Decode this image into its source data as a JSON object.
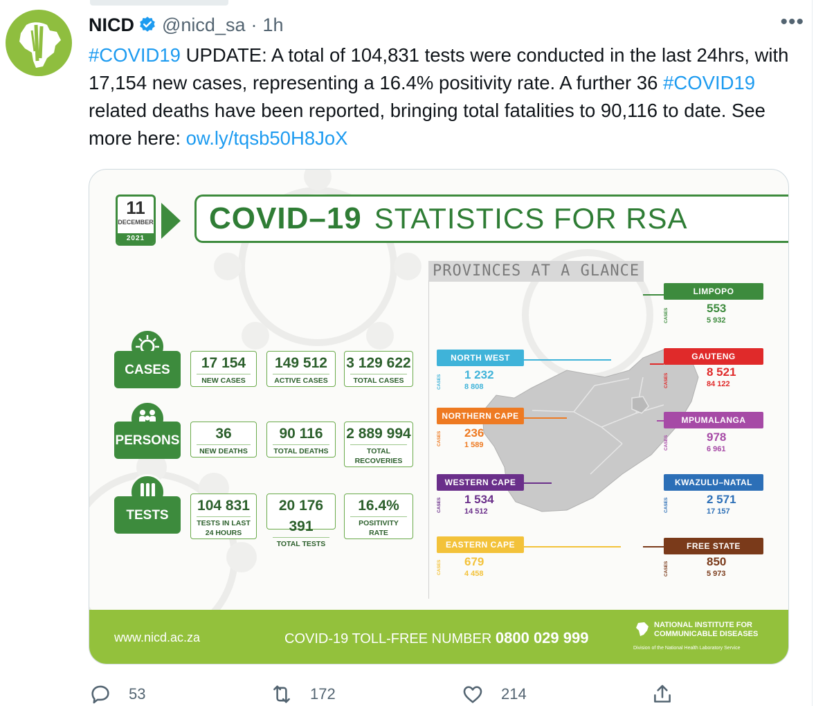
{
  "tweet": {
    "display_name": "NICD",
    "handle": "@nicd_sa",
    "time": "1h",
    "text_parts": {
      "tag1": "#COVID19",
      "p1": " UPDATE: A total of 104,831 tests were conducted in the last 24hrs, with 17,154 new cases, representing a 16.4% positivity rate. A further 36 ",
      "tag2": "#COVID19",
      "p2": " related deaths have been reported, bringing total fatalities to 90,116 to date. See more here: ",
      "url": "ow.ly/tqsb50H8JoX"
    },
    "counts": {
      "replies": "53",
      "retweets": "172",
      "likes": "214"
    }
  },
  "infographic": {
    "date": {
      "day": "11",
      "month": "DECEMBER",
      "year": "2021"
    },
    "title_bold": "COVID–19",
    "title_light": "STATISTICS FOR RSA",
    "cases": {
      "label": "CASES",
      "new": {
        "value": "17 154",
        "label": "NEW CASES"
      },
      "active": {
        "value": "149 512",
        "label": "ACTIVE CASES"
      },
      "total": {
        "value": "3 129 622",
        "label": "TOTAL CASES"
      }
    },
    "persons": {
      "label": "PERSONS",
      "new_deaths": {
        "value": "36",
        "label": "NEW DEATHS"
      },
      "total_deaths": {
        "value": "90 116",
        "label": "TOTAL DEATHS"
      },
      "recoveries": {
        "value": "2 889 994",
        "label": "TOTAL RECOVERIES"
      }
    },
    "tests": {
      "label": "TESTS",
      "last24": {
        "value": "104 831",
        "label": "TESTS IN LAST 24 HOURS"
      },
      "total": {
        "value": "20 176 391",
        "label": "TOTAL TESTS"
      },
      "positivity": {
        "value": "16.4%",
        "label": "POSITIVITY RATE"
      }
    },
    "glance": "PROVINCES AT A GLANCE",
    "cases_tag": "CASES",
    "provinces": {
      "limpopo": {
        "name": "LIMPOPO",
        "new": "553",
        "total": "5 932",
        "color": "#3d8b3d"
      },
      "gauteng": {
        "name": "GAUTENG",
        "new": "8 521",
        "total": "84 122",
        "color": "#e02a2a"
      },
      "mpumalanga": {
        "name": "MPUMALANGA",
        "new": "978",
        "total": "6 961",
        "color": "#a64aa6"
      },
      "kwazulu": {
        "name": "KWAZULU–NATAL",
        "new": "2 571",
        "total": "17 157",
        "color": "#2c6fb7"
      },
      "freestate": {
        "name": "FREE STATE",
        "new": "850",
        "total": "5 973",
        "color": "#7a3a1a"
      },
      "northwest": {
        "name": "NORTH WEST",
        "new": "1 232",
        "total": "8 808",
        "color": "#3fb3d9"
      },
      "northerncape": {
        "name": "NORTHERN CAPE",
        "new": "236",
        "total": "1 589",
        "color": "#ee7a22"
      },
      "westerncape": {
        "name": "WESTERN CAPE",
        "new": "1 534",
        "total": "14 512",
        "color": "#6a2f8a"
      },
      "easterncape": {
        "name": "EASTERN CAPE",
        "new": "679",
        "total": "4 458",
        "color": "#f3c23a"
      }
    },
    "footer": {
      "url": "www.nicd.ac.za",
      "toll_label": "COVID-19 TOLL-FREE NUMBER",
      "toll_number": "0800 029 999",
      "inst_line1": "NATIONAL INSTITUTE FOR",
      "inst_line2": "COMMUNICABLE DISEASES",
      "division": "Division of the National Health Laboratory Service"
    }
  }
}
